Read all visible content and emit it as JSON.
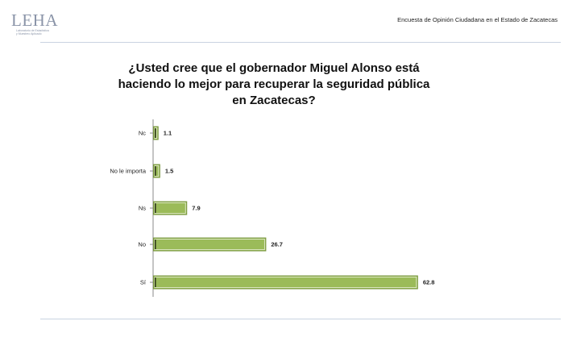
{
  "header": {
    "logo_text": "LEHA",
    "logo_subtitle_1": "Laboratorio de Estadística",
    "logo_subtitle_2": "y Muestreo Aplicado",
    "caption": "Encuesta de Opinión Ciudadana en el Estado de Zacatecas"
  },
  "colors": {
    "bar_fill": "#9bbb59",
    "bar_edge": "#76933c",
    "rule": "#c9d3e1"
  },
  "chart_data": {
    "type": "bar",
    "orientation": "horizontal",
    "title": "¿Usted cree que el gobernador Miguel Alonso está haciendo lo mejor para recuperar la seguridad pública en Zacatecas?",
    "title_lines": [
      "¿Usted cree que el gobernador Miguel Alonso está",
      "haciendo lo mejor para recuperar la seguridad pública",
      "en Zacatecas?"
    ],
    "categories": [
      "Nc",
      "No le importa",
      "Ns",
      "No",
      "Sí"
    ],
    "values": [
      1.1,
      1.5,
      7.9,
      26.7,
      62.8
    ],
    "value_labels": [
      "1.1",
      "1.5",
      "7.9",
      "26.7",
      "62.8"
    ],
    "xlabel": "",
    "ylabel": "",
    "xlim": [
      0,
      65
    ],
    "grid": false,
    "legend": "none"
  }
}
